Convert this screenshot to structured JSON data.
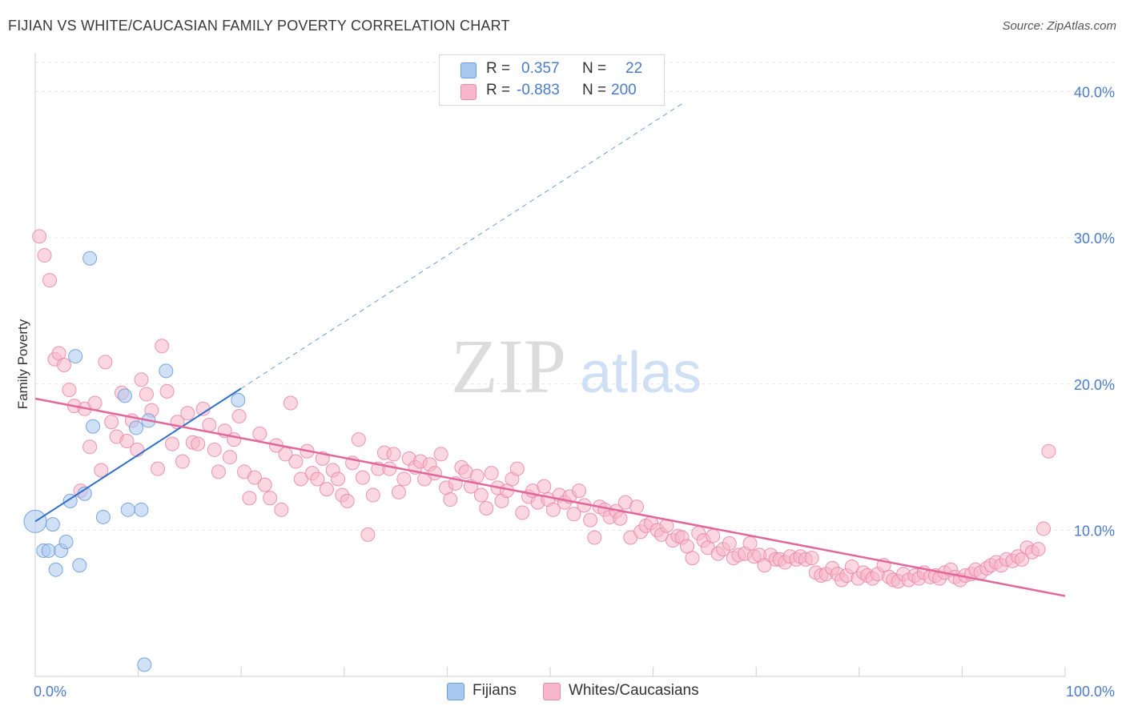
{
  "header": {
    "title": "FIJIAN VS WHITE/CAUCASIAN FAMILY POVERTY CORRELATION CHART",
    "source": "Source: ZipAtlas.com"
  },
  "watermark": {
    "zip": "ZIP",
    "atlas": "atlas"
  },
  "legend": {
    "rows": [
      {
        "r_label": "R =",
        "r_value": "0.357",
        "n_label": "N =",
        "n_value": "22",
        "color": "#a9c8f0"
      },
      {
        "r_label": "R =",
        "r_value": "-0.883",
        "n_label": "N =",
        "n_value": "200",
        "color": "#f7b6cb"
      }
    ]
  },
  "bottom_legend": [
    {
      "label": "Fijians",
      "color": "#a9c8f0"
    },
    {
      "label": "Whites/Caucasians",
      "color": "#f7b6cb"
    }
  ],
  "chart_data": {
    "type": "scatter",
    "title": "FIJIAN VS WHITE/CAUCASIAN FAMILY POVERTY CORRELATION CHART",
    "xlabel": "",
    "ylabel": "Family Poverty",
    "xlim": [
      0,
      100
    ],
    "ylim": [
      0,
      42
    ],
    "x_tick_labels": [
      "0.0%",
      "100.0%"
    ],
    "y_ticks": [
      10,
      20,
      30,
      40
    ],
    "y_tick_labels": [
      "10.0%",
      "20.0%",
      "30.0%",
      "40.0%"
    ],
    "grid": true,
    "series": [
      {
        "name": "Fijians",
        "color": "#a9c8f0",
        "stroke": "#6b9ddb",
        "r": 0.357,
        "n": 22,
        "trend": {
          "x0": 0,
          "y0": 10.6,
          "x1": 20,
          "y1": 19.7,
          "extend_to_x": 63
        },
        "trend_color": "#2f6fcb",
        "points": [
          [
            0,
            10.6
          ],
          [
            0.8,
            8.6
          ],
          [
            1.3,
            8.6
          ],
          [
            1.7,
            10.4
          ],
          [
            2.0,
            7.3
          ],
          [
            2.5,
            8.6
          ],
          [
            3.0,
            9.2
          ],
          [
            3.4,
            12.0
          ],
          [
            3.9,
            21.9
          ],
          [
            4.3,
            7.6
          ],
          [
            4.8,
            12.5
          ],
          [
            5.3,
            28.6
          ],
          [
            5.6,
            17.1
          ],
          [
            6.6,
            10.9
          ],
          [
            8.7,
            19.2
          ],
          [
            9.8,
            17.0
          ],
          [
            10.3,
            11.4
          ],
          [
            10.6,
            0.8
          ],
          [
            9.0,
            11.4
          ],
          [
            11.0,
            17.5
          ],
          [
            12.7,
            20.9
          ],
          [
            19.7,
            18.9
          ]
        ]
      },
      {
        "name": "Whites/Caucasians",
        "color": "#f7b6cb",
        "stroke": "#e98aaa",
        "r": -0.883,
        "n": 200,
        "trend": {
          "x0": 0,
          "y0": 19.0,
          "x1": 100,
          "y1": 5.5
        },
        "trend_color": "#e2679a",
        "points": [
          [
            0.4,
            30.1
          ],
          [
            0.9,
            28.8
          ],
          [
            1.4,
            27.1
          ],
          [
            1.9,
            21.7
          ],
          [
            2.3,
            22.1
          ],
          [
            2.8,
            21.3
          ],
          [
            3.3,
            19.6
          ],
          [
            3.8,
            18.5
          ],
          [
            4.4,
            12.7
          ],
          [
            4.8,
            18.3
          ],
          [
            5.3,
            15.7
          ],
          [
            5.8,
            18.7
          ],
          [
            6.4,
            14.1
          ],
          [
            6.8,
            21.5
          ],
          [
            7.4,
            17.4
          ],
          [
            7.9,
            16.4
          ],
          [
            8.4,
            19.4
          ],
          [
            8.9,
            16.1
          ],
          [
            9.4,
            17.5
          ],
          [
            9.9,
            15.5
          ],
          [
            10.3,
            20.3
          ],
          [
            10.8,
            19.3
          ],
          [
            11.3,
            18.2
          ],
          [
            11.9,
            14.2
          ],
          [
            12.3,
            22.6
          ],
          [
            12.8,
            19.5
          ],
          [
            13.3,
            15.9
          ],
          [
            13.8,
            17.4
          ],
          [
            14.3,
            14.7
          ],
          [
            14.8,
            18.0
          ],
          [
            15.3,
            16.0
          ],
          [
            15.8,
            15.9
          ],
          [
            16.3,
            18.3
          ],
          [
            16.9,
            17.2
          ],
          [
            17.4,
            15.5
          ],
          [
            17.8,
            14.0
          ],
          [
            18.4,
            16.8
          ],
          [
            18.9,
            15.0
          ],
          [
            19.3,
            16.2
          ],
          [
            19.8,
            17.8
          ],
          [
            20.3,
            14.0
          ],
          [
            20.8,
            12.2
          ],
          [
            21.3,
            13.6
          ],
          [
            21.8,
            16.6
          ],
          [
            22.3,
            13.1
          ],
          [
            22.8,
            12.2
          ],
          [
            23.4,
            15.8
          ],
          [
            23.9,
            11.4
          ],
          [
            24.3,
            15.2
          ],
          [
            24.8,
            18.7
          ],
          [
            25.3,
            14.7
          ],
          [
            25.8,
            13.5
          ],
          [
            26.4,
            15.4
          ],
          [
            26.9,
            13.9
          ],
          [
            27.4,
            13.5
          ],
          [
            27.9,
            14.9
          ],
          [
            28.3,
            12.8
          ],
          [
            28.9,
            14.1
          ],
          [
            29.4,
            13.5
          ],
          [
            29.8,
            12.4
          ],
          [
            30.3,
            12.0
          ],
          [
            30.8,
            14.6
          ],
          [
            31.4,
            16.2
          ],
          [
            31.8,
            13.6
          ],
          [
            32.3,
            9.7
          ],
          [
            32.8,
            12.4
          ],
          [
            33.3,
            14.2
          ],
          [
            33.9,
            15.3
          ],
          [
            34.4,
            14.2
          ],
          [
            34.8,
            15.2
          ],
          [
            35.3,
            12.6
          ],
          [
            35.8,
            13.5
          ],
          [
            36.3,
            14.9
          ],
          [
            36.9,
            14.3
          ],
          [
            37.4,
            14.7
          ],
          [
            37.8,
            13.5
          ],
          [
            38.3,
            14.5
          ],
          [
            38.8,
            13.9
          ],
          [
            39.4,
            15.2
          ],
          [
            39.9,
            12.9
          ],
          [
            40.3,
            12.1
          ],
          [
            40.8,
            13.2
          ],
          [
            41.4,
            14.3
          ],
          [
            41.8,
            14.0
          ],
          [
            42.3,
            13.0
          ],
          [
            42.9,
            13.7
          ],
          [
            43.3,
            12.4
          ],
          [
            43.8,
            11.5
          ],
          [
            44.3,
            13.9
          ],
          [
            44.9,
            12.9
          ],
          [
            45.3,
            12.0
          ],
          [
            45.8,
            12.7
          ],
          [
            46.3,
            13.5
          ],
          [
            46.8,
            14.2
          ],
          [
            47.3,
            11.2
          ],
          [
            47.9,
            12.3
          ],
          [
            48.3,
            12.7
          ],
          [
            48.8,
            11.9
          ],
          [
            49.4,
            13.0
          ],
          [
            49.8,
            12.1
          ],
          [
            50.3,
            11.4
          ],
          [
            50.9,
            12.4
          ],
          [
            51.4,
            11.9
          ],
          [
            51.9,
            12.3
          ],
          [
            52.3,
            11.1
          ],
          [
            52.8,
            12.7
          ],
          [
            53.3,
            11.7
          ],
          [
            53.9,
            10.7
          ],
          [
            54.3,
            9.5
          ],
          [
            54.8,
            11.6
          ],
          [
            55.3,
            11.4
          ],
          [
            55.8,
            10.9
          ],
          [
            56.4,
            11.3
          ],
          [
            56.8,
            10.8
          ],
          [
            57.3,
            11.9
          ],
          [
            57.8,
            9.5
          ],
          [
            58.4,
            11.6
          ],
          [
            58.8,
            9.9
          ],
          [
            59.3,
            10.3
          ],
          [
            59.8,
            10.5
          ],
          [
            60.4,
            10.0
          ],
          [
            60.8,
            9.7
          ],
          [
            61.3,
            10.3
          ],
          [
            61.9,
            9.3
          ],
          [
            62.4,
            9.6
          ],
          [
            62.8,
            9.5
          ],
          [
            63.3,
            8.9
          ],
          [
            63.8,
            8.1
          ],
          [
            64.4,
            9.8
          ],
          [
            64.9,
            9.3
          ],
          [
            65.3,
            8.8
          ],
          [
            65.8,
            9.6
          ],
          [
            66.3,
            8.4
          ],
          [
            66.8,
            8.7
          ],
          [
            67.4,
            9.1
          ],
          [
            67.8,
            8.1
          ],
          [
            68.3,
            8.3
          ],
          [
            68.9,
            8.4
          ],
          [
            69.4,
            9.1
          ],
          [
            69.8,
            8.2
          ],
          [
            70.3,
            8.3
          ],
          [
            70.8,
            7.6
          ],
          [
            71.4,
            8.3
          ],
          [
            71.9,
            8.0
          ],
          [
            72.3,
            8.0
          ],
          [
            72.8,
            7.8
          ],
          [
            73.3,
            8.2
          ],
          [
            73.9,
            8.0
          ],
          [
            74.3,
            8.2
          ],
          [
            74.8,
            8.0
          ],
          [
            75.4,
            8.1
          ],
          [
            75.8,
            7.1
          ],
          [
            76.3,
            6.9
          ],
          [
            76.8,
            7.0
          ],
          [
            77.4,
            7.4
          ],
          [
            77.9,
            7.0
          ],
          [
            78.3,
            6.6
          ],
          [
            78.8,
            6.9
          ],
          [
            79.3,
            7.5
          ],
          [
            79.9,
            6.7
          ],
          [
            80.4,
            7.1
          ],
          [
            80.8,
            6.9
          ],
          [
            81.3,
            6.7
          ],
          [
            81.8,
            7.0
          ],
          [
            82.4,
            7.6
          ],
          [
            82.9,
            6.8
          ],
          [
            83.3,
            6.6
          ],
          [
            83.8,
            6.5
          ],
          [
            84.3,
            7.0
          ],
          [
            84.8,
            6.6
          ],
          [
            85.4,
            6.9
          ],
          [
            85.8,
            6.7
          ],
          [
            86.3,
            7.1
          ],
          [
            86.9,
            6.8
          ],
          [
            87.4,
            6.9
          ],
          [
            87.8,
            6.7
          ],
          [
            88.3,
            7.1
          ],
          [
            88.9,
            7.3
          ],
          [
            89.3,
            6.8
          ],
          [
            89.8,
            6.6
          ],
          [
            90.3,
            6.9
          ],
          [
            90.9,
            7.0
          ],
          [
            91.3,
            7.3
          ],
          [
            91.8,
            7.1
          ],
          [
            92.4,
            7.4
          ],
          [
            92.8,
            7.6
          ],
          [
            93.3,
            7.8
          ],
          [
            93.8,
            7.6
          ],
          [
            94.3,
            8.0
          ],
          [
            94.9,
            7.9
          ],
          [
            95.4,
            8.2
          ],
          [
            95.8,
            8.0
          ],
          [
            96.3,
            8.8
          ],
          [
            96.8,
            8.5
          ],
          [
            97.4,
            8.7
          ],
          [
            97.9,
            10.1
          ],
          [
            98.4,
            15.4
          ]
        ]
      }
    ]
  }
}
